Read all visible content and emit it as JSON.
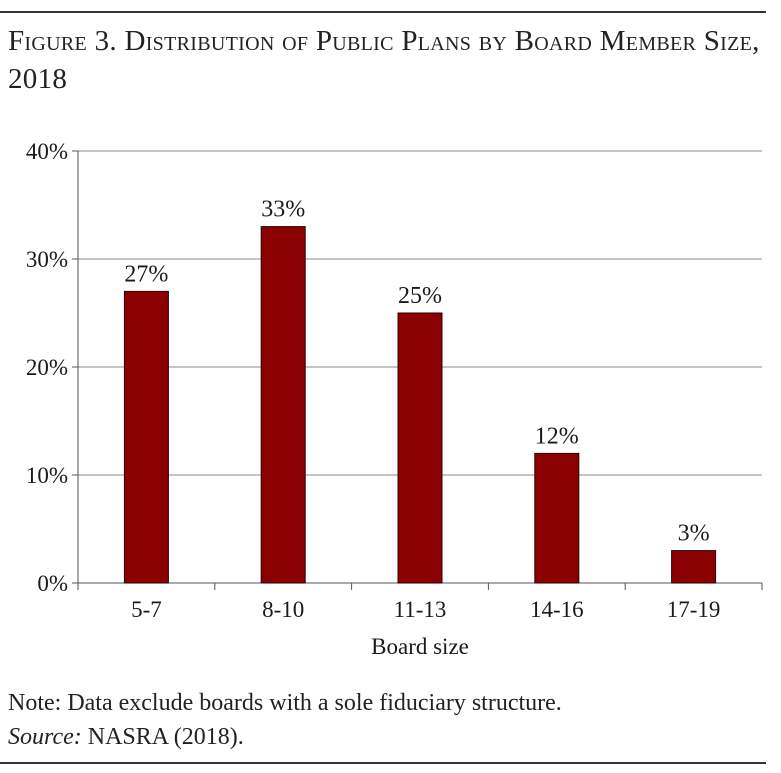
{
  "figure": {
    "title": "Figure 3. Distribution of Public Plans by Board Member Size, 2018",
    "note": "Note: Data exclude boards with a sole fiduciary structure.",
    "source_label": "Source:",
    "source_text": " NASRA (2018)."
  },
  "chart_data": {
    "type": "bar",
    "categories": [
      "5-7",
      "8-10",
      "11-13",
      "14-16",
      "17-19"
    ],
    "values": [
      27,
      33,
      25,
      12,
      3
    ],
    "value_labels": [
      "27%",
      "33%",
      "25%",
      "12%",
      "3%"
    ],
    "xlabel": "Board size",
    "ylabel": "",
    "ylim": [
      0,
      40
    ],
    "yticks": [
      0,
      10,
      20,
      30,
      40
    ],
    "ytick_labels": [
      "0%",
      "10%",
      "20%",
      "30%",
      "40%"
    ],
    "grid": true,
    "legend": "none",
    "bar_color": "#8b0000",
    "bar_edge_color": "#2a0000"
  }
}
